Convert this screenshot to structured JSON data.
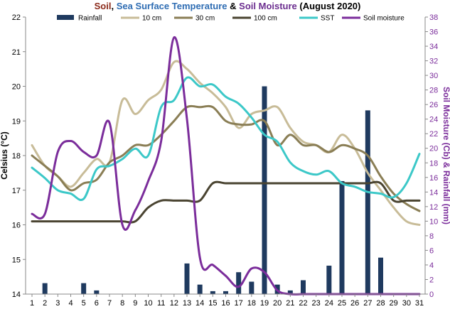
{
  "chart_data": {
    "type": "line",
    "title_segments": [
      {
        "text": "Soil",
        "color": "#8b2a1a"
      },
      {
        "text": ", ",
        "color": "#000000"
      },
      {
        "text": "Sea Surface Temperature",
        "color": "#2f6db3"
      },
      {
        "text": " & ",
        "color": "#000000"
      },
      {
        "text": "Soil Moisture",
        "color": "#6b2d8f"
      },
      {
        "text": " (August 2020)",
        "color": "#000000"
      }
    ],
    "ylabel": "Celsius (°C)",
    "y2label": "Soil Moisture (Cb) & Rainfall (mm)",
    "y2label_color": "#7b2d9b",
    "x": [
      1,
      2,
      3,
      4,
      5,
      6,
      7,
      8,
      9,
      10,
      11,
      12,
      13,
      14,
      15,
      16,
      17,
      18,
      19,
      20,
      21,
      22,
      23,
      24,
      25,
      26,
      27,
      28,
      29,
      30,
      31
    ],
    "ylim": [
      14,
      22
    ],
    "y_ticks": [
      14,
      15,
      16,
      17,
      18,
      19,
      20,
      21,
      22
    ],
    "y2lim": [
      0,
      38
    ],
    "y2_ticks": [
      0,
      2,
      4,
      6,
      8,
      10,
      12,
      14,
      16,
      18,
      20,
      22,
      24,
      26,
      28,
      30,
      32,
      34,
      36,
      38
    ],
    "y2_tick_color": "#7b2d9b",
    "grid": false,
    "legend_position": "top",
    "rainfall": {
      "name": "Rainfall",
      "color": "#1f3a5f",
      "axis": "y2",
      "values": [
        0,
        1.5,
        0,
        0,
        1.5,
        0.5,
        0,
        0,
        0,
        0,
        0,
        0,
        4.2,
        1.3,
        0.4,
        0.4,
        3,
        1.7,
        28.5,
        1.3,
        0.5,
        1.9,
        0,
        3.9,
        15.5,
        0,
        25.2,
        5,
        0,
        0,
        0
      ]
    },
    "series": [
      {
        "name": "10 cm",
        "color": "#c8bc98",
        "axis": "y",
        "values": [
          18.3,
          17.7,
          17.4,
          17.1,
          17.5,
          17.9,
          17.8,
          19.6,
          19.2,
          19.6,
          19.9,
          20.7,
          20.5,
          20.1,
          19.8,
          19.4,
          18.8,
          19.2,
          19.3,
          19.4,
          18.8,
          18.4,
          18.3,
          18.1,
          18.6,
          18.2,
          17.5,
          17.0,
          16.5,
          16.1,
          16.0
        ]
      },
      {
        "name": "30 cm",
        "color": "#8a7e55",
        "axis": "y",
        "values": [
          18.0,
          17.7,
          17.4,
          17.0,
          17.2,
          17.3,
          17.8,
          18.0,
          18.3,
          18.3,
          18.6,
          19.0,
          19.4,
          19.4,
          19.4,
          19.0,
          18.9,
          18.9,
          19.0,
          18.3,
          18.6,
          18.3,
          18.3,
          18.1,
          18.3,
          18.2,
          18.0,
          17.4,
          16.9,
          16.6,
          16.4
        ]
      },
      {
        "name": "100 cm",
        "color": "#4a4431",
        "axis": "y",
        "values": [
          16.1,
          16.1,
          16.1,
          16.1,
          16.1,
          16.1,
          16.1,
          16.1,
          16.1,
          16.5,
          16.7,
          16.7,
          16.7,
          16.7,
          17.2,
          17.2,
          17.2,
          17.2,
          17.2,
          17.2,
          17.2,
          17.2,
          17.2,
          17.2,
          17.2,
          17.2,
          17.2,
          17.2,
          16.7,
          16.7,
          16.7
        ]
      },
      {
        "name": "SST",
        "color": "#3cc8c8",
        "axis": "y",
        "values": [
          17.65,
          17.35,
          17.0,
          16.9,
          16.75,
          17.6,
          17.7,
          17.9,
          18.2,
          18.0,
          19.4,
          19.6,
          20.25,
          20.0,
          20.05,
          19.7,
          19.5,
          19.1,
          18.6,
          18.4,
          17.8,
          17.55,
          17.45,
          17.55,
          17.2,
          17.1,
          16.95,
          16.9,
          16.8,
          17.2,
          18.05
        ]
      },
      {
        "name": "Soil moisture",
        "color": "#7b2d9b",
        "axis": "y2",
        "values": [
          11,
          11,
          19.5,
          21,
          19.5,
          19,
          23.5,
          9.5,
          11.5,
          15.5,
          21,
          35.2,
          24,
          5,
          4,
          2.5,
          1,
          3.5,
          3,
          0.5,
          0,
          0,
          0,
          0,
          0,
          0,
          0,
          0,
          0,
          0,
          0
        ]
      }
    ]
  }
}
